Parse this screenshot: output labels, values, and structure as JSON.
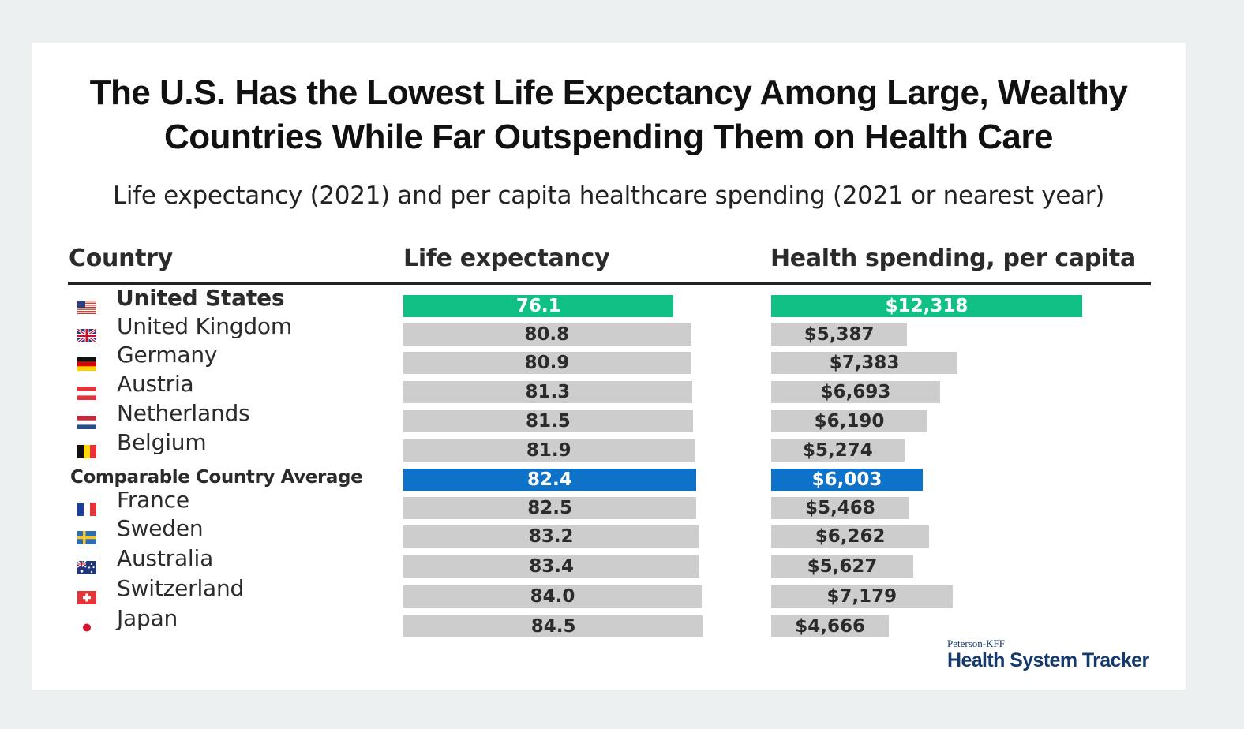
{
  "title_line1": "The U.S. Has the Lowest Life Expectancy Among Large, Wealthy",
  "title_line2": "Countries While Far Outspending Them on Health Care",
  "subtitle": "Life expectancy (2021) and per capita healthcare spending (2021 or nearest year)",
  "headers": {
    "country": "Country",
    "life": "Life expectancy",
    "spending": "Health spending, per capita"
  },
  "colors": {
    "highlight_us": "#11c085",
    "highlight_avg": "#0f72c9",
    "bar_default": "#cdcdcd"
  },
  "logo": {
    "small": "Peterson-KFF",
    "big": "Health System Tracker"
  },
  "chart_data": {
    "type": "bar",
    "categories": [
      "United States",
      "United Kingdom",
      "Germany",
      "Austria",
      "Netherlands",
      "Belgium",
      "Comparable Country Average",
      "France",
      "Sweden",
      "Australia",
      "Switzerland",
      "Japan"
    ],
    "flags": [
      "us",
      "uk",
      "de",
      "at",
      "nl",
      "be",
      "",
      "fr",
      "se",
      "au",
      "ch",
      "jp"
    ],
    "highlight": [
      "us",
      "",
      "",
      "",
      "",
      "",
      "avg",
      "",
      "",
      "",
      "",
      ""
    ],
    "series": [
      {
        "name": "Life expectancy",
        "values": [
          76.1,
          80.8,
          80.9,
          81.3,
          81.5,
          81.9,
          82.4,
          82.5,
          83.2,
          83.4,
          84.0,
          84.5
        ],
        "labels": [
          "76.1",
          "80.8",
          "80.9",
          "81.3",
          "81.5",
          "81.9",
          "82.4",
          "82.5",
          "83.2",
          "83.4",
          "84.0",
          "84.5"
        ]
      },
      {
        "name": "Health spending, per capita",
        "values": [
          12318,
          5387,
          7383,
          6693,
          6190,
          5274,
          6003,
          5468,
          6262,
          5627,
          7179,
          4666
        ],
        "labels": [
          "$12,318",
          "$5,387",
          "$7,383",
          "$6,693",
          "$6,190",
          "$5,274",
          "$6,003",
          "$5,468",
          "$6,262",
          "$5,627",
          "$7,179",
          "$4,666"
        ]
      }
    ]
  }
}
